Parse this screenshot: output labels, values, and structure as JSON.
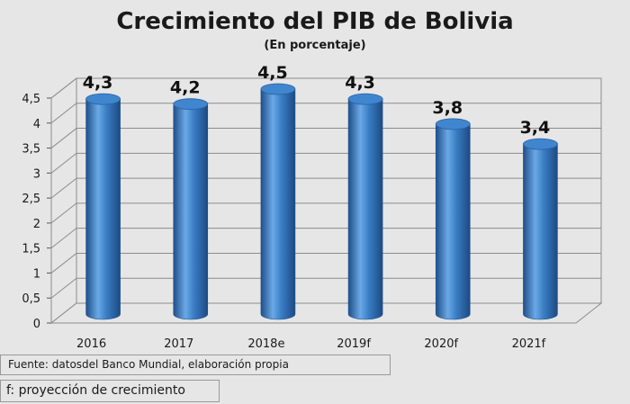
{
  "chart_data": {
    "type": "bar",
    "title": "Crecimiento del PIB de Bolivia",
    "subtitle": "(En porcentaje)",
    "categories": [
      "2016",
      "2017",
      "2018e",
      "2019f",
      "2020f",
      "2021f"
    ],
    "values": [
      4.3,
      4.2,
      4.5,
      4.3,
      3.8,
      3.4
    ],
    "value_labels": [
      "4,3",
      "4,2",
      "4,5",
      "4,3",
      "3,8",
      "3,4"
    ],
    "yticks": [
      "0",
      "0,5",
      "1",
      "1,5",
      "2",
      "2,5",
      "3",
      "3,5",
      "4",
      "4,5"
    ],
    "ylim": [
      0,
      4.5
    ],
    "grid": true,
    "style": "3d-cylinder",
    "colors": {
      "bar": "#3a7dc4",
      "bar_light": "#6aa9e6",
      "bar_dark": "#1f4f8a",
      "grid": "#8c8c8c",
      "background": "#e6e6e6"
    }
  },
  "notes": {
    "source": "Fuente:  datosdel Banco Mundial, elaboración propia",
    "forecast": "f: proyección de crecimiento"
  }
}
